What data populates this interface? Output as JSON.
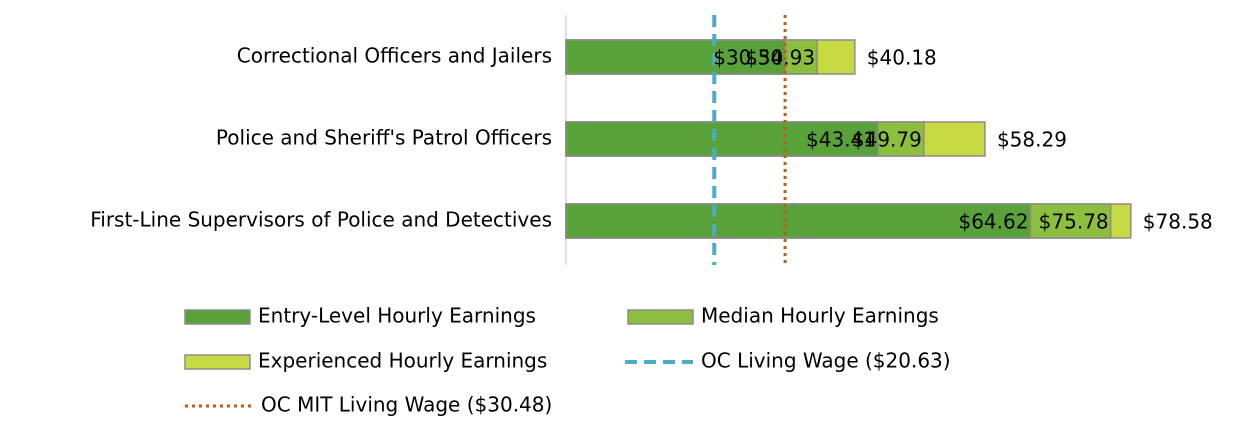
{
  "chart_data": {
    "type": "hbar_overlap",
    "categories": [
      "Correctional Officers and Jailers",
      "Police and Sheriff's Patrol Officers",
      "First-Line Supervisors of Police and Detectives"
    ],
    "series": [
      {
        "name": "Entry-Level Hourly Earnings",
        "color": "#59a23a",
        "label_position": "inside_end",
        "values": [
          30.5,
          43.41,
          64.62
        ],
        "value_labels": [
          "$30.50",
          "$43.41",
          "$64.62"
        ]
      },
      {
        "name": "Median Hourly Earnings",
        "color": "#8dbf3f",
        "label_position": "inside_end",
        "values": [
          34.93,
          49.79,
          75.78
        ],
        "value_labels": [
          "$34.93",
          "$49.79",
          "$75.78"
        ]
      },
      {
        "name": "Experienced Hourly Earnings",
        "color": "#c8da41",
        "label_position": "outside_end",
        "values": [
          40.18,
          58.29,
          78.58
        ],
        "value_labels": [
          "$40.18",
          "$58.29",
          "$78.58"
        ]
      }
    ],
    "reference_lines": [
      {
        "name": "OC Living Wage ($20.63)",
        "value": 20.63,
        "color": "#4bacc6",
        "style": "dashed"
      },
      {
        "name": "OC MIT Living Wage ($30.48)",
        "value": 30.48,
        "color": "#c55a11",
        "style": "dotted"
      }
    ],
    "xlim": [
      0,
      80
    ]
  }
}
